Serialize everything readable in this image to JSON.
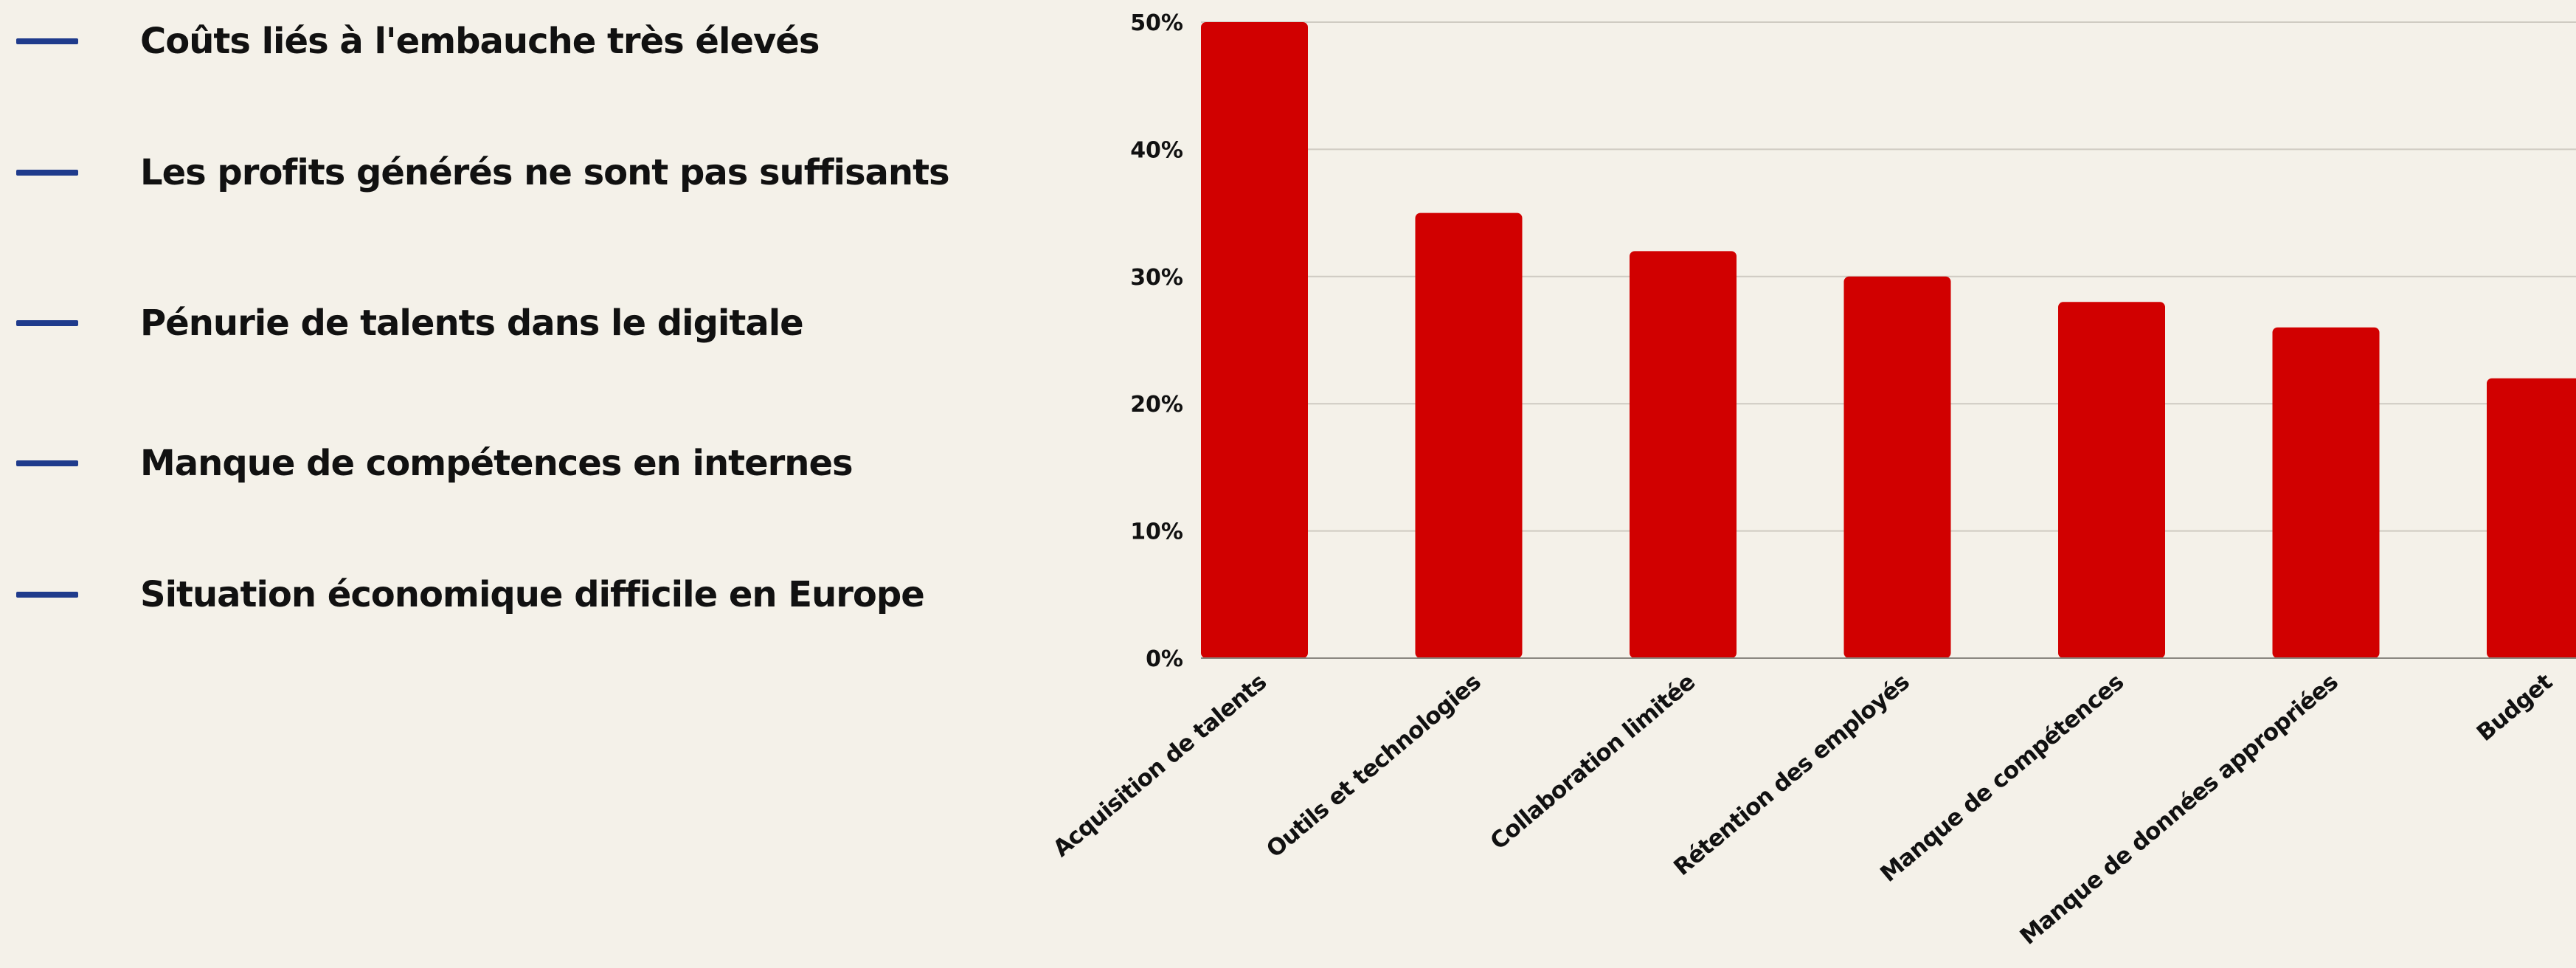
{
  "colors": {
    "background": "#f4f1e9",
    "bullet_dash": "#1f3b8c",
    "bar": "#d10000",
    "gridline": "#cfcbc2",
    "axis": "#8a8780",
    "text": "#111111"
  },
  "bullets": [
    {
      "label": "Coûts liés à l'embauche très élevés"
    },
    {
      "label": "Les profits générés ne sont pas suffisants"
    },
    {
      "label": "Pénurie de talents dans le digitale"
    },
    {
      "label": "Manque de compétences en internes"
    },
    {
      "label": "Situation économique difficile en Europe"
    }
  ],
  "footer_partial_text": "",
  "chart_data": {
    "type": "bar",
    "categories": [
      "Acquisition de talents",
      "Outils et technologies",
      "Collaboration limitée",
      "Rétention des employés",
      "Manque de compétences",
      "Manque de données appropriées",
      "Budget"
    ],
    "values": [
      50,
      35,
      32,
      30,
      28,
      26,
      22
    ],
    "ylim": [
      0,
      50
    ],
    "yticks": [
      0,
      10,
      20,
      30,
      40,
      50
    ],
    "ytick_labels": [
      "0%",
      "10%",
      "20%",
      "30%",
      "40%",
      "50%"
    ],
    "grid": true,
    "legend": "none",
    "title": "",
    "xlabel": "",
    "ylabel": ""
  }
}
